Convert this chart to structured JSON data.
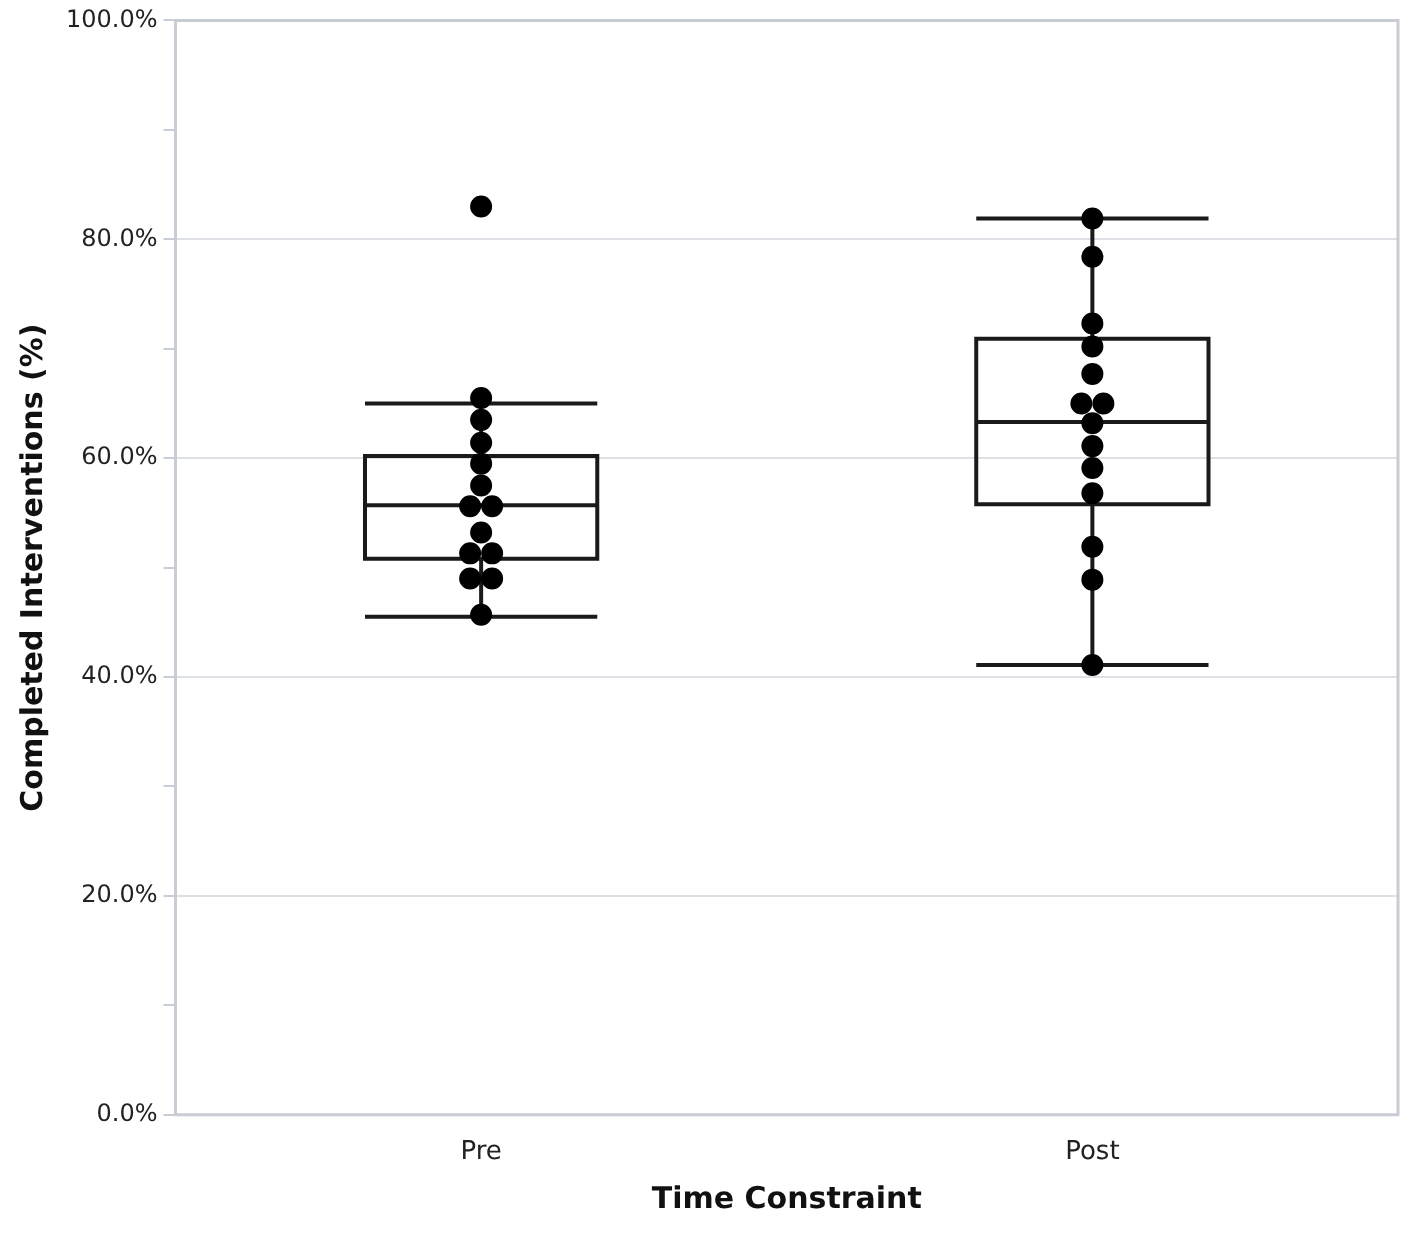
{
  "chart_data": {
    "type": "box",
    "xlabel": "Time Constraint",
    "ylabel": "Completed Interventions (%)",
    "categories": [
      "Pre",
      "Post"
    ],
    "boxes": [
      {
        "low": 45.5,
        "q1": 50.8,
        "median": 55.7,
        "q3": 60.2,
        "high": 65
      },
      {
        "low": 41.1,
        "q1": 55.8,
        "median": 63.3,
        "q3": 70.9,
        "high": 81.9
      }
    ],
    "series": [
      {
        "type": "scatter",
        "color": "#000000",
        "x": [
          "Pre",
          "Pre",
          "Pre",
          "Pre",
          "Pre",
          "Pre",
          "Pre",
          "Pre",
          "Pre",
          "Pre",
          "Pre",
          "Pre",
          "Pre",
          "Pre",
          "Post",
          "Post",
          "Post",
          "Post",
          "Post",
          "Post",
          "Post",
          "Post",
          "Post",
          "Post",
          "Post",
          "Post",
          "Post",
          "Post"
        ],
        "values": [
          83,
          65.5,
          63.5,
          61.4,
          59.5,
          57.5,
          55.6,
          55.6,
          53.2,
          51.3,
          51.3,
          49,
          49,
          45.7,
          81.9,
          78.4,
          72.3,
          70.2,
          67.7,
          65,
          65,
          63.2,
          61.1,
          59.1,
          56.8,
          51.9,
          48.9,
          41.1
        ]
      }
    ],
    "marker": "circle",
    "ylim": [
      0,
      100
    ],
    "yticks": [
      {
        "value": 0,
        "label": "0.0%"
      },
      {
        "value": 10,
        "label": null
      },
      {
        "value": 20,
        "label": "20.0%"
      },
      {
        "value": 30,
        "label": null
      },
      {
        "value": 40,
        "label": "40.0%"
      },
      {
        "value": 50,
        "label": null
      },
      {
        "value": 60,
        "label": "60.0%"
      },
      {
        "value": 70,
        "label": null
      },
      {
        "value": 80,
        "label": "80.0%"
      },
      {
        "value": 90,
        "label": null
      },
      {
        "value": 100,
        "label": "100.0%"
      }
    ],
    "grid": "y"
  }
}
